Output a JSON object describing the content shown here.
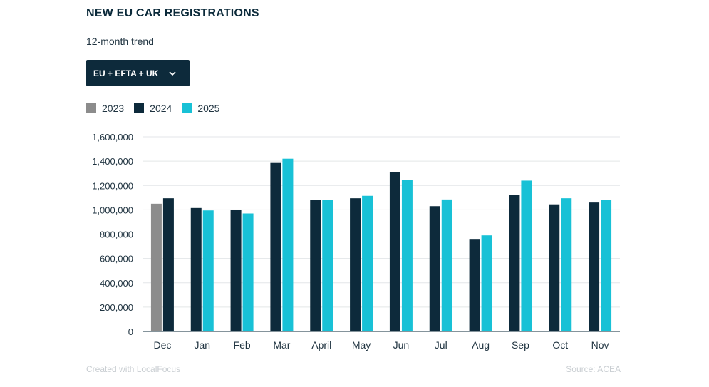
{
  "title": "NEW EU CAR REGISTRATIONS",
  "subtitle": "12-month trend",
  "dropdown": {
    "label": "EU + EFTA + UK",
    "icon": "chevron-down-icon"
  },
  "footer": {
    "left": "Created with LocalFocus",
    "right": "Source: ACEA"
  },
  "chart_data": {
    "type": "bar",
    "title": "NEW EU CAR REGISTRATIONS",
    "subtitle": "12-month trend",
    "categories": [
      "Dec",
      "Jan",
      "Feb",
      "Mar",
      "April",
      "May",
      "Jun",
      "Jul",
      "Aug",
      "Sep",
      "Oct",
      "Nov"
    ],
    "series": [
      {
        "name": "2023",
        "color": "#8c8c8c",
        "values": [
          1050000,
          null,
          null,
          null,
          null,
          null,
          null,
          null,
          null,
          null,
          null,
          null
        ]
      },
      {
        "name": "2024",
        "color": "#0d2a3b",
        "values": [
          1095000,
          1015000,
          1000000,
          1385000,
          1080000,
          1095000,
          1310000,
          1030000,
          755000,
          1120000,
          1045000,
          1060000
        ]
      },
      {
        "name": "2025",
        "color": "#18c1d6",
        "values": [
          null,
          995000,
          970000,
          1420000,
          1080000,
          1115000,
          1245000,
          1085000,
          790000,
          1240000,
          1095000,
          1080000
        ]
      }
    ],
    "yticks": [
      "0",
      "200,000",
      "400,000",
      "600,000",
      "800,000",
      "1,000,000",
      "1,200,000",
      "1,400,000",
      "1,600,000"
    ],
    "ylim": [
      0,
      1600000
    ],
    "grid": true,
    "legend_position": "top-left"
  }
}
